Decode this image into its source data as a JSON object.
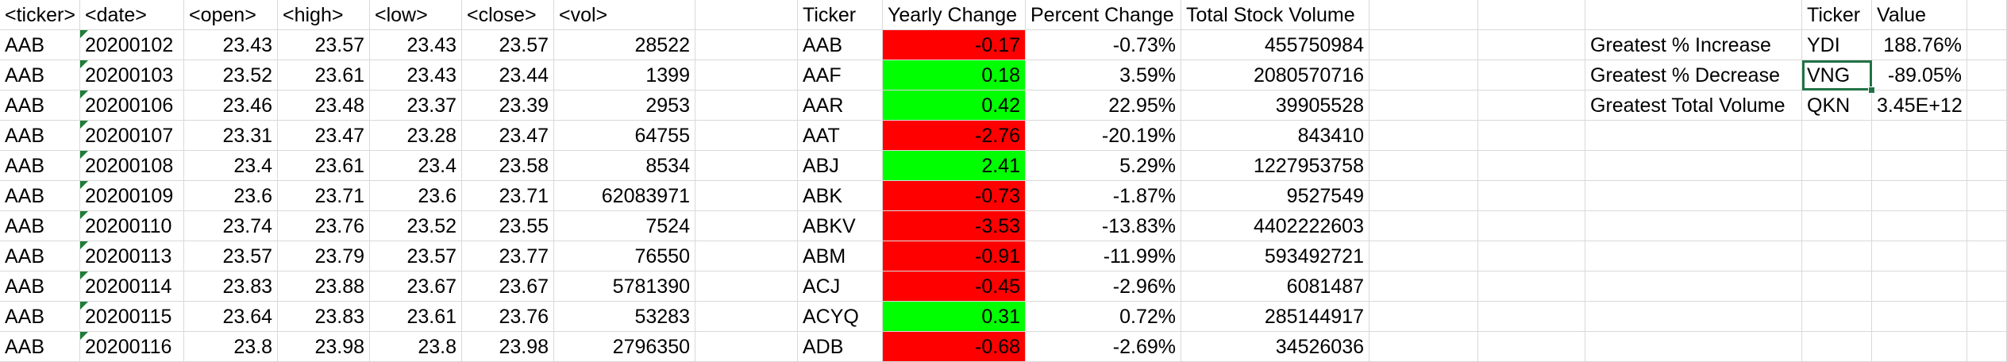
{
  "raw_table": {
    "headers": [
      "<ticker>",
      "<date>",
      "<open>",
      "<high>",
      "<low>",
      "<close>",
      "<vol>"
    ],
    "rows": [
      [
        "AAB",
        "20200102",
        "23.43",
        "23.57",
        "23.43",
        "23.57",
        "28522"
      ],
      [
        "AAB",
        "20200103",
        "23.52",
        "23.61",
        "23.43",
        "23.44",
        "1399"
      ],
      [
        "AAB",
        "20200106",
        "23.46",
        "23.48",
        "23.37",
        "23.39",
        "2953"
      ],
      [
        "AAB",
        "20200107",
        "23.31",
        "23.47",
        "23.28",
        "23.47",
        "64755"
      ],
      [
        "AAB",
        "20200108",
        "23.4",
        "23.61",
        "23.4",
        "23.58",
        "8534"
      ],
      [
        "AAB",
        "20200109",
        "23.6",
        "23.71",
        "23.6",
        "23.71",
        "62083971"
      ],
      [
        "AAB",
        "20200110",
        "23.74",
        "23.76",
        "23.52",
        "23.55",
        "7524"
      ],
      [
        "AAB",
        "20200113",
        "23.57",
        "23.79",
        "23.57",
        "23.77",
        "76550"
      ],
      [
        "AAB",
        "20200114",
        "23.83",
        "23.88",
        "23.67",
        "23.67",
        "5781390"
      ],
      [
        "AAB",
        "20200115",
        "23.64",
        "23.83",
        "23.61",
        "23.76",
        "53283"
      ],
      [
        "AAB",
        "20200116",
        "23.8",
        "23.98",
        "23.8",
        "23.98",
        "2796350"
      ]
    ]
  },
  "summary_table": {
    "headers": [
      "Ticker",
      "Yearly Change",
      "Percent Change",
      "Total Stock Volume"
    ],
    "rows": [
      {
        "ticker": "AAB",
        "change": "-0.17",
        "pct": "-0.73%",
        "vol": "455750984",
        "sign": "neg"
      },
      {
        "ticker": "AAF",
        "change": "0.18",
        "pct": "3.59%",
        "vol": "2080570716",
        "sign": "pos"
      },
      {
        "ticker": "AAR",
        "change": "0.42",
        "pct": "22.95%",
        "vol": "39905528",
        "sign": "pos"
      },
      {
        "ticker": "AAT",
        "change": "-2.76",
        "pct": "-20.19%",
        "vol": "843410",
        "sign": "neg"
      },
      {
        "ticker": "ABJ",
        "change": "2.41",
        "pct": "5.29%",
        "vol": "1227953758",
        "sign": "pos"
      },
      {
        "ticker": "ABK",
        "change": "-0.73",
        "pct": "-1.87%",
        "vol": "9527549",
        "sign": "neg"
      },
      {
        "ticker": "ABKV",
        "change": "-3.53",
        "pct": "-13.83%",
        "vol": "4402222603",
        "sign": "neg"
      },
      {
        "ticker": "ABM",
        "change": "-0.91",
        "pct": "-11.99%",
        "vol": "593492721",
        "sign": "neg"
      },
      {
        "ticker": "ACJ",
        "change": "-0.45",
        "pct": "-2.96%",
        "vol": "6081487",
        "sign": "neg"
      },
      {
        "ticker": "ACYQ",
        "change": "0.31",
        "pct": "0.72%",
        "vol": "285144917",
        "sign": "pos"
      },
      {
        "ticker": "ADB",
        "change": "-0.68",
        "pct": "-2.69%",
        "vol": "34526036",
        "sign": "neg"
      }
    ]
  },
  "greatest_table": {
    "headers": [
      "Ticker",
      "Value"
    ],
    "rows": [
      {
        "label": "Greatest % Increase",
        "ticker": "YDI",
        "value": "188.76%"
      },
      {
        "label": "Greatest % Decrease",
        "ticker": "VNG",
        "value": "-89.05%"
      },
      {
        "label": "Greatest Total Volume",
        "ticker": "QKN",
        "value": "3.45E+12"
      }
    ]
  },
  "colors": {
    "positive": "#00ff00",
    "negative": "#ff0000",
    "gridline": "#d9d9d9",
    "selection": "#217346"
  }
}
